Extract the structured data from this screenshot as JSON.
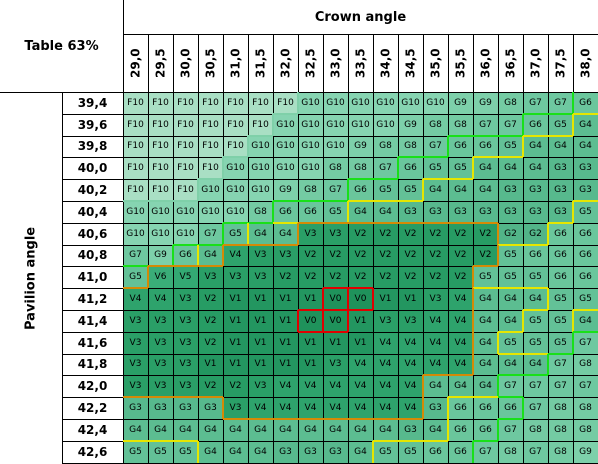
{
  "table_label": "Table 63%",
  "crown_title": "Crown angle",
  "pavilion_title": "Pavilion angle",
  "crown_angles": [
    "29,0",
    "29,5",
    "30,0",
    "30,5",
    "31,0",
    "31,5",
    "32,0",
    "32,5",
    "33,0",
    "33,5",
    "34,0",
    "34,5",
    "35,0",
    "35,5",
    "36,0",
    "36,5",
    "37,0",
    "37,5",
    "38,0"
  ],
  "pavilion_angles": [
    "39,4",
    "39,6",
    "39,8",
    "40,0",
    "40,2",
    "40,4",
    "40,6",
    "40,8",
    "41,0",
    "41,2",
    "41,4",
    "41,6",
    "41,8",
    "42,0",
    "42,2",
    "42,4",
    "42,6"
  ],
  "grades": [
    [
      "F10",
      "F10",
      "F10",
      "F10",
      "F10",
      "F10",
      "F10",
      "G10",
      "G10",
      "G10",
      "G10",
      "G10",
      "G10",
      "G9",
      "G9",
      "G8",
      "G7",
      "G7",
      "G6"
    ],
    [
      "F10",
      "F10",
      "F10",
      "F10",
      "F10",
      "F10",
      "G10",
      "G10",
      "G10",
      "G10",
      "G10",
      "G9",
      "G8",
      "G8",
      "G7",
      "G7",
      "G6",
      "G5",
      "G4"
    ],
    [
      "F10",
      "F10",
      "F10",
      "F10",
      "F10",
      "G10",
      "G10",
      "G10",
      "G10",
      "G9",
      "G8",
      "G8",
      "G7",
      "G6",
      "G6",
      "G5",
      "G4",
      "G4",
      "G4"
    ],
    [
      "F10",
      "F10",
      "F10",
      "F10",
      "G10",
      "G10",
      "G10",
      "G10",
      "G8",
      "G8",
      "G7",
      "G6",
      "G5",
      "G5",
      "G4",
      "G4",
      "G4",
      "G3",
      "G3"
    ],
    [
      "F10",
      "F10",
      "F10",
      "G10",
      "G10",
      "G10",
      "G9",
      "G8",
      "G7",
      "G6",
      "G5",
      "G5",
      "G4",
      "G4",
      "G4",
      "G3",
      "G3",
      "G3",
      "G3"
    ],
    [
      "G10",
      "G10",
      "G10",
      "G10",
      "G10",
      "G8",
      "G6",
      "G6",
      "G5",
      "G4",
      "G4",
      "G3",
      "G3",
      "G3",
      "G3",
      "G3",
      "G3",
      "G3",
      "G5"
    ],
    [
      "G10",
      "G10",
      "G10",
      "G7",
      "G5",
      "G4",
      "G4",
      "V3",
      "V3",
      "V2",
      "V2",
      "V2",
      "V2",
      "V2",
      "V2",
      "G2",
      "G2",
      "G6",
      "G6"
    ],
    [
      "G7",
      "G9",
      "G6",
      "G4",
      "V4",
      "V3",
      "V3",
      "V2",
      "V2",
      "V2",
      "V2",
      "V2",
      "V2",
      "V2",
      "V2",
      "G5",
      "G6",
      "G6",
      "G6"
    ],
    [
      "G5",
      "V6",
      "V5",
      "V3",
      "V3",
      "V3",
      "V2",
      "V2",
      "V2",
      "V2",
      "V2",
      "V2",
      "V2",
      "V2",
      "G5",
      "G5",
      "G5",
      "G6",
      "G6"
    ],
    [
      "V4",
      "V4",
      "V3",
      "V2",
      "V1",
      "V1",
      "V1",
      "V1",
      "V0",
      "V0",
      "V1",
      "V1",
      "V3",
      "V4",
      "G4",
      "G4",
      "G4",
      "G5",
      "G5"
    ],
    [
      "V3",
      "V3",
      "V3",
      "V2",
      "V1",
      "V1",
      "V1",
      "V0",
      "V0",
      "V1",
      "V3",
      "V3",
      "V4",
      "V4",
      "G4",
      "G4",
      "G5",
      "G5",
      "G4"
    ],
    [
      "V3",
      "V3",
      "V3",
      "V2",
      "V1",
      "V1",
      "V1",
      "V1",
      "V1",
      "V1",
      "V4",
      "V4",
      "V4",
      "V4",
      "G4",
      "G5",
      "G5",
      "G5",
      "G7"
    ],
    [
      "V3",
      "V3",
      "V3",
      "V1",
      "V1",
      "V1",
      "V1",
      "V1",
      "V3",
      "V4",
      "V4",
      "V4",
      "V4",
      "V4",
      "G4",
      "G4",
      "G4",
      "G7",
      "G8"
    ],
    [
      "V3",
      "V3",
      "V3",
      "V2",
      "V2",
      "V3",
      "V4",
      "V4",
      "V4",
      "V4",
      "V4",
      "V4",
      "G4",
      "G4",
      "G4",
      "G7",
      "G7",
      "G7",
      "G7"
    ],
    [
      "G3",
      "G3",
      "G3",
      "G3",
      "V3",
      "V4",
      "V4",
      "V4",
      "V4",
      "V4",
      "V4",
      "V4",
      "G3",
      "G6",
      "G6",
      "G6",
      "G7",
      "G8",
      "G8"
    ],
    [
      "G4",
      "G4",
      "G4",
      "G4",
      "G4",
      "G4",
      "G4",
      "G4",
      "G4",
      "G4",
      "G4",
      "G3",
      "G4",
      "G6",
      "G6",
      "G7",
      "G8",
      "G8",
      "G8"
    ],
    [
      "G5",
      "G5",
      "G5",
      "G4",
      "G4",
      "G4",
      "G3",
      "G3",
      "G3",
      "G4",
      "G5",
      "G5",
      "G6",
      "G6",
      "G7",
      "G8",
      "G7",
      "G8",
      "G9"
    ]
  ],
  "grade_colors": {
    "F": "#a9dfc4",
    "G10": "#86d4b1",
    "G9": "#7dd0aa",
    "G8": "#74cba3",
    "G7": "#6ec8a0",
    "G6": "#6ac69c",
    "G5": "#63c197",
    "G4": "#5cbd91",
    "G3": "#57b98d",
    "G2": "#52b488",
    "V6": "#3aad78",
    "V5": "#33a973",
    "V4": "#2ea36c",
    "V3": "#2a9f67",
    "V2": "#279c64",
    "V1": "#239660",
    "V0": "#1f925b"
  },
  "boundary_colors": {
    "F-G": "#7fd0a9",
    "G-V": "#d48a06",
    "shift": "#e6e600",
    "green": "#19e019",
    "V0": "#e00000"
  }
}
